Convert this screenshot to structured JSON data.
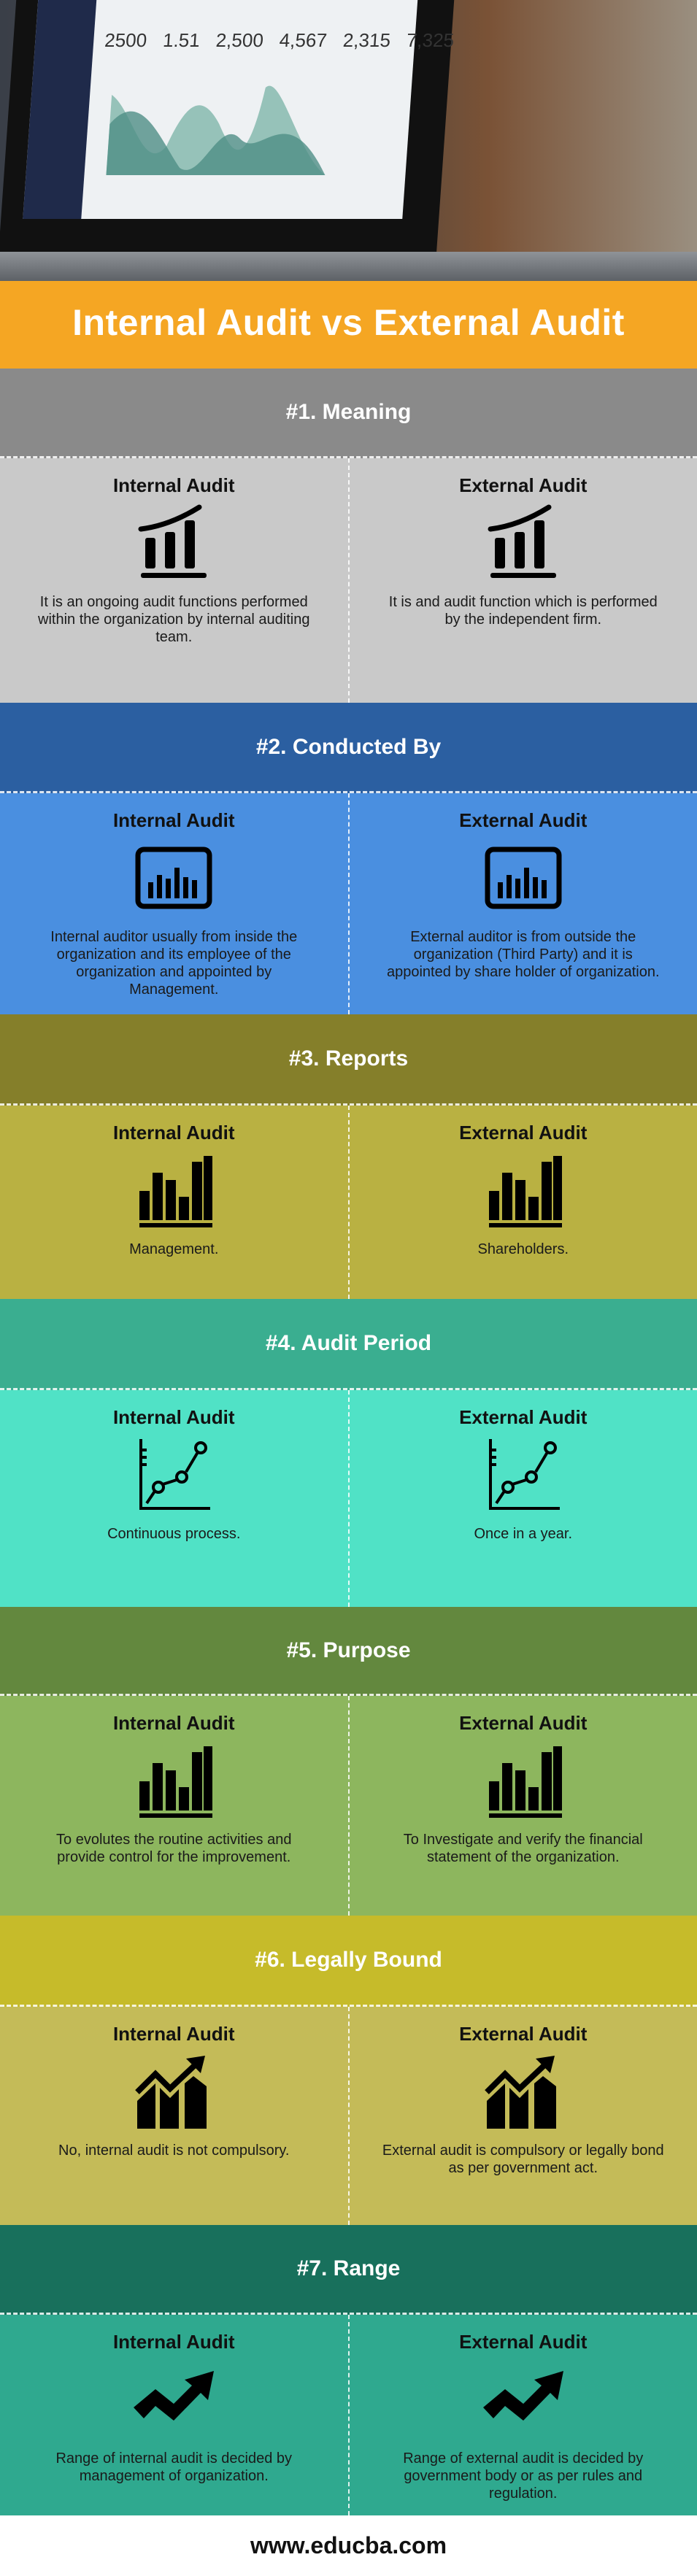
{
  "title": "Internal Audit vs External Audit",
  "photo": {
    "screen_stats": [
      "2500",
      "1.51",
      "2,500",
      "4,567",
      "2,315",
      "7,325"
    ]
  },
  "sections": [
    {
      "heading": "#1. Meaning",
      "header_color": "#8a8a8a",
      "body_color": "#c9c9c9",
      "icon": "growth-curve-bars-icon",
      "internal": {
        "label": "Internal Audit",
        "text": "It is an ongoing audit functions performed within the organization by internal auditing team."
      },
      "external": {
        "label": "External Audit",
        "text": "It is and audit function which is performed by the independent firm."
      }
    },
    {
      "heading": "#2. Conducted By",
      "header_color": "#2b5fa1",
      "body_color": "#4a8fe0",
      "icon": "monitor-chart-icon",
      "internal": {
        "label": "Internal Audit",
        "text": "Internal auditor usually from inside the organization and its employee of the organization and appointed by Management."
      },
      "external": {
        "label": "External Audit",
        "text": "External auditor is from outside the organization (Third Party) and it is appointed by share holder of organization."
      }
    },
    {
      "heading": "#3. Reports",
      "header_color": "#857f2a",
      "body_color": "#b9b142",
      "icon": "bar-chart-icon",
      "internal": {
        "label": "Internal Audit",
        "text": "Management."
      },
      "external": {
        "label": "External Audit",
        "text": "Shareholders."
      }
    },
    {
      "heading": "#4. Audit Period",
      "header_color": "#3aae90",
      "body_color": "#50e2c6",
      "icon": "line-graph-icon",
      "internal": {
        "label": "Internal Audit",
        "text": "Continuous process."
      },
      "external": {
        "label": "External Audit",
        "text": "Once in a year."
      }
    },
    {
      "heading": "#5. Purpose",
      "header_color": "#63883e",
      "body_color": "#8db65e",
      "icon": "bar-chart-icon",
      "internal": {
        "label": "Internal Audit",
        "text": "To evolutes the routine activities and provide control for the improvement."
      },
      "external": {
        "label": "External Audit",
        "text": "To Investigate and verify the financial statement of the organization."
      }
    },
    {
      "heading": "#6. Legally Bound",
      "header_color": "#c6bb2a",
      "body_color": "#c4bb58",
      "icon": "trend-arrow-bars-icon",
      "internal": {
        "label": "Internal Audit",
        "text": "No, internal audit is not compulsory."
      },
      "external": {
        "label": "External Audit",
        "text": "External audit is compulsory or legally bond as per government act."
      }
    },
    {
      "heading": "#7. Range",
      "header_color": "#18705c",
      "body_color": "#2fa98f",
      "icon": "zigzag-arrow-icon",
      "internal": {
        "label": "Internal Audit",
        "text": "Range of internal audit is decided by management of organization."
      },
      "external": {
        "label": "External Audit",
        "text": "Range of external audit is decided by government body or as per rules and regulation."
      }
    }
  ],
  "footer": "www.educba.com"
}
